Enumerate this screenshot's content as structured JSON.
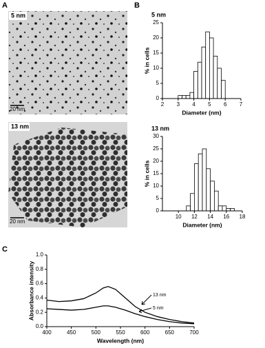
{
  "panels": {
    "a": {
      "label": "A",
      "images": [
        {
          "label": "5 nm",
          "scale": "20 nm"
        },
        {
          "label": "13 nm",
          "scale": "20 nm"
        }
      ]
    },
    "b": {
      "label": "B"
    },
    "c": {
      "label": "C"
    }
  },
  "chart_data": [
    {
      "type": "histogram",
      "title": "5 nm",
      "xlabel": "Diameter (nm)",
      "ylabel": "% in cells",
      "color": "#ffffff",
      "bins": [
        3,
        3.25,
        3.5,
        3.75,
        4,
        4.25,
        4.5,
        4.75,
        5,
        5.25,
        5.5,
        5.75,
        6
      ],
      "values": [
        1,
        1,
        1,
        2,
        9,
        12,
        17,
        22,
        20,
        14,
        10,
        6
      ],
      "xlim": [
        2,
        7
      ],
      "xticks": [
        2,
        3,
        4,
        5,
        6,
        7
      ],
      "ylim": [
        0,
        25
      ],
      "yticks": [
        0,
        5,
        10,
        15,
        20,
        25
      ]
    },
    {
      "type": "histogram",
      "title": "13 nm",
      "xlabel": "Diameter (nm)",
      "ylabel": "% in cells",
      "color": "#ffffff",
      "bins": [
        11,
        11.5,
        12,
        12.5,
        13,
        13.5,
        14,
        14.5,
        15,
        15.5,
        16,
        16.5,
        17
      ],
      "values": [
        2,
        7,
        19,
        23,
        25,
        17,
        12,
        8,
        2,
        2,
        1,
        1
      ],
      "xlim": [
        8,
        18
      ],
      "xticks": [
        10,
        12,
        14,
        16,
        18
      ],
      "ylim": [
        0,
        30
      ],
      "yticks": [
        0,
        5,
        10,
        15,
        20,
        25,
        30
      ]
    },
    {
      "type": "line",
      "xlabel": "Wavelength (nm)",
      "ylabel": "Absorbance intensity",
      "x": [
        400,
        425,
        450,
        475,
        500,
        515,
        525,
        540,
        560,
        580,
        600,
        625,
        650,
        675,
        700
      ],
      "series": [
        {
          "name": "13 nm",
          "color": "#000000",
          "values": [
            0.37,
            0.35,
            0.36,
            0.39,
            0.47,
            0.54,
            0.56,
            0.52,
            0.4,
            0.28,
            0.2,
            0.14,
            0.1,
            0.07,
            0.05
          ]
        },
        {
          "name": "5 nm",
          "color": "#000000",
          "values": [
            0.25,
            0.24,
            0.23,
            0.24,
            0.27,
            0.29,
            0.29,
            0.27,
            0.23,
            0.18,
            0.14,
            0.1,
            0.07,
            0.05,
            0.04
          ]
        }
      ],
      "xlim": [
        400,
        700
      ],
      "xticks": [
        400,
        450,
        500,
        550,
        600,
        650,
        700
      ],
      "ylim": [
        0,
        1
      ],
      "yticks": [
        {
          "value": 0,
          "label": "0.0"
        },
        {
          "value": 0.2,
          "label": "0.2"
        },
        {
          "value": 0.4,
          "label": "0.4"
        },
        {
          "value": 0.6,
          "label": "0.6"
        },
        {
          "value": 0.8,
          "label": "0.8"
        },
        {
          "value": 1,
          "label": "1.0"
        }
      ]
    }
  ]
}
